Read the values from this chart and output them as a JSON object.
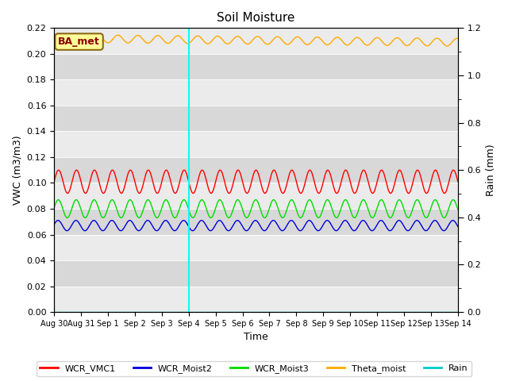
{
  "title": "Soil Moisture",
  "xlabel": "Time",
  "ylabel_left": "VWC (m3/m3)",
  "ylabel_right": "Rain (mm)",
  "ylim_left": [
    0.0,
    0.22
  ],
  "ylim_right": [
    0.0,
    1.2
  ],
  "yticks_left": [
    0.0,
    0.02,
    0.04,
    0.06,
    0.08,
    0.1,
    0.12,
    0.14,
    0.16,
    0.18,
    0.2,
    0.22
  ],
  "yticks_right_major": [
    0.0,
    0.2,
    0.4,
    0.6,
    0.8,
    1.0,
    1.2
  ],
  "xtick_labels": [
    "Aug 30",
    "Aug 31",
    "Sep 1",
    "Sep 2",
    "Sep 3",
    "Sep 4",
    "Sep 5",
    "Sep 6",
    "Sep 7",
    "Sep 8",
    "Sep 9",
    "Sep 10",
    "Sep 11",
    "Sep 12",
    "Sep 13",
    "Sep 14"
  ],
  "n_points": 700,
  "wcr_vmc1_base": 0.101,
  "wcr_vmc1_amp": 0.009,
  "wcr_moist2_base": 0.067,
  "wcr_moist2_amp": 0.004,
  "wcr_moist3_base": 0.08,
  "wcr_moist3_amp": 0.007,
  "theta_base": 0.212,
  "theta_amp": 0.003,
  "rain_value": 0.0,
  "vline_x": 5.0,
  "color_wcr_vmc1": "#ff0000",
  "color_wcr_moist2": "#0000dd",
  "color_wcr_moist3": "#00dd00",
  "color_theta": "#ffaa00",
  "color_rain": "#00cccc",
  "color_vline": "cyan",
  "color_bg_dark": "#d8d8d8",
  "color_bg_light": "#ebebeb",
  "legend_labels": [
    "WCR_VMC1",
    "WCR_Moist2",
    "WCR_Moist3",
    "Theta_moist",
    "Rain"
  ],
  "station_label": "BA_met",
  "station_label_color": "#8b0000",
  "station_label_bg": "#ffff99",
  "station_label_border": "#8b6914",
  "fig_width": 6.4,
  "fig_height": 4.8,
  "dpi": 100
}
